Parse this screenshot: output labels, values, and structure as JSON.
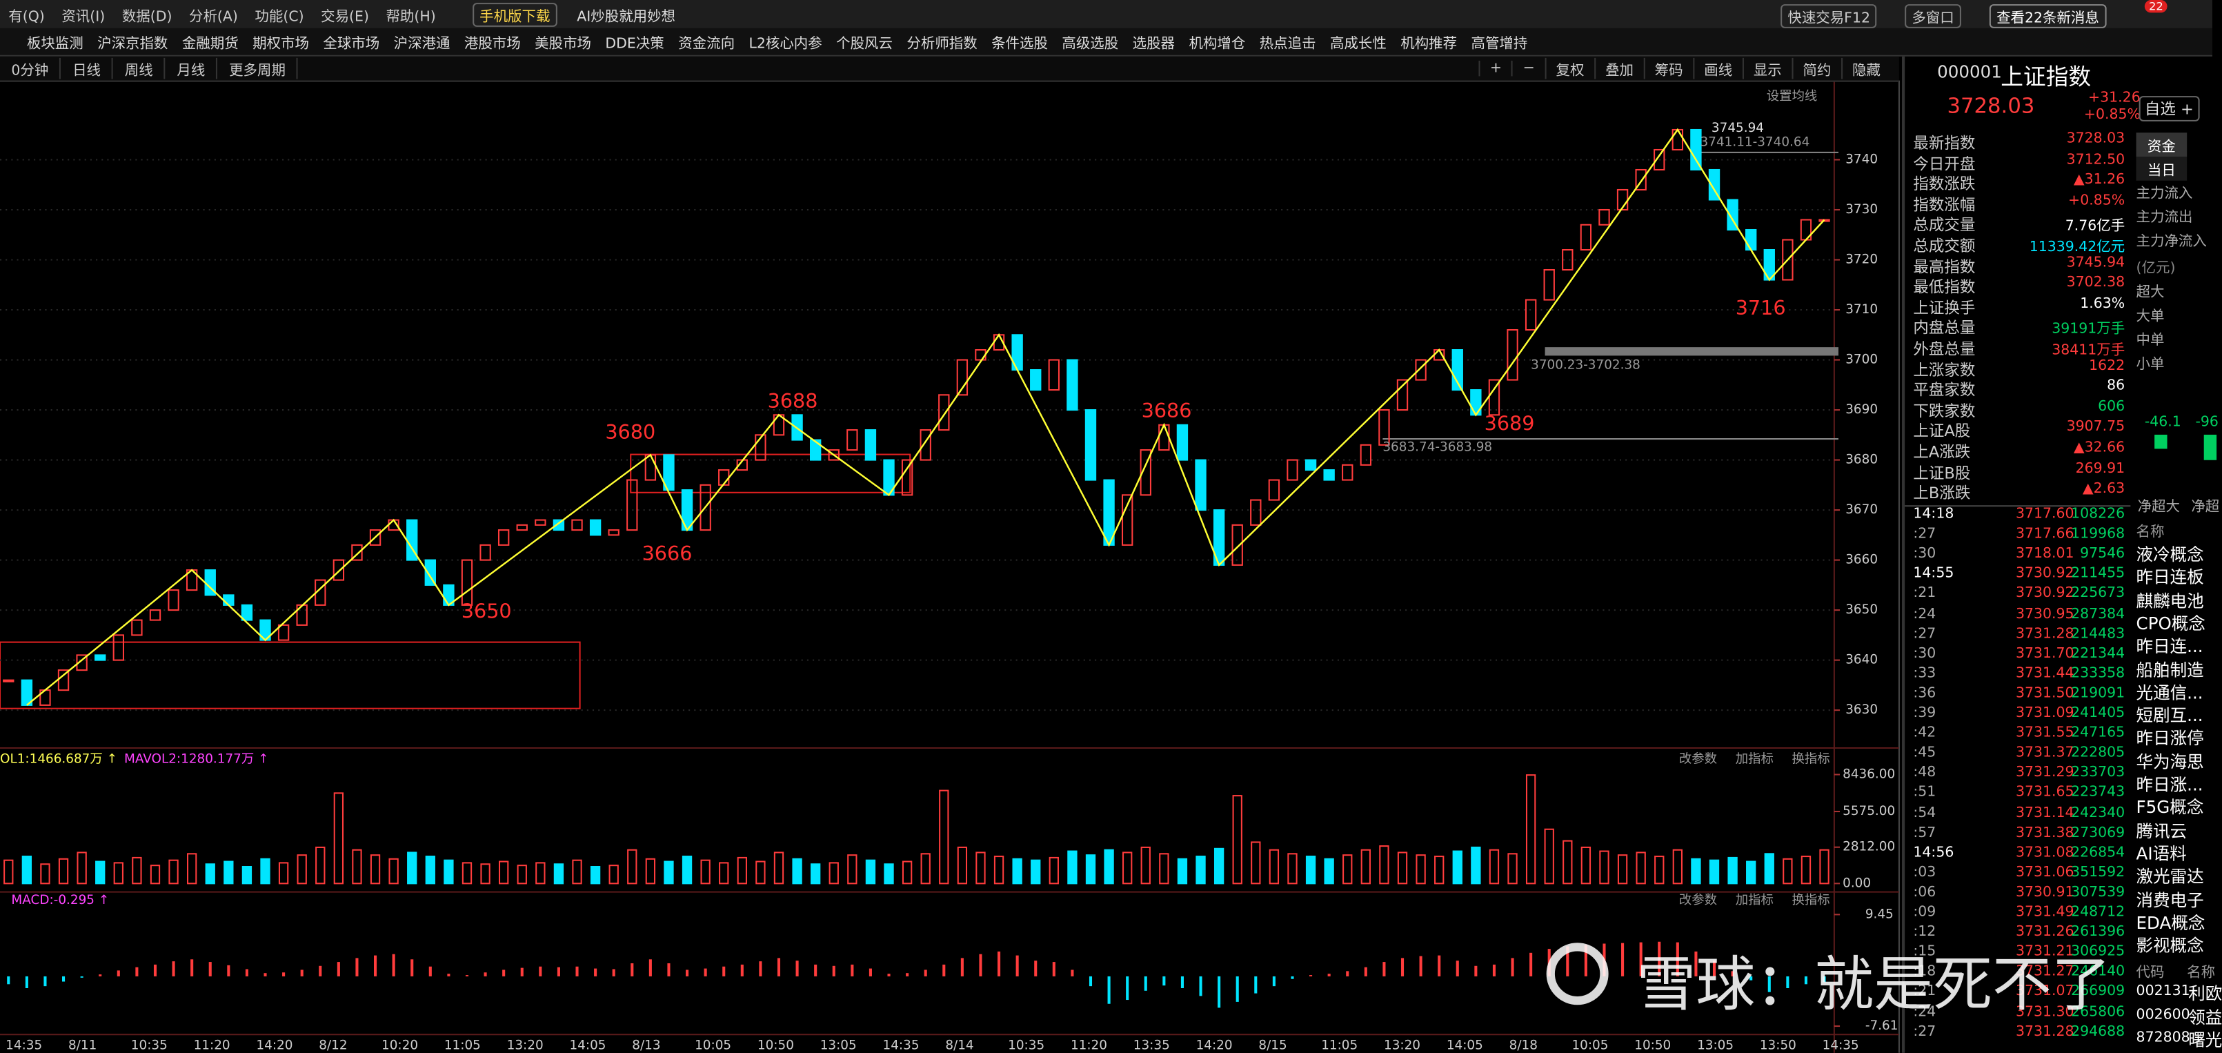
{
  "menu": {
    "items": [
      "有(Q)",
      "资讯(I)",
      "数据(D)",
      "分析(A)",
      "功能(C)",
      "交易(E)",
      "帮助(H)"
    ],
    "mobile": "手机版下载",
    "ai": "AI炒股就用妙想",
    "quick": "快速交易F12",
    "multi": "多窗口",
    "news": "查看22条新消息",
    "badge": "22"
  },
  "nav": [
    "板块监测",
    "沪深京指数",
    "金融期货",
    "期权市场",
    "全球市场",
    "沪深港通",
    "港股市场",
    "美股市场",
    "DDE决策",
    "资金流向",
    "L2核心内参",
    "个股风云",
    "分析师指数",
    "条件选股",
    "高级选股",
    "选股器",
    "机构增仓",
    "热点追击",
    "高成长性",
    "机构推荐",
    "高管增持"
  ],
  "toolbar": {
    "periods": [
      "0分钟",
      "日线",
      "周线",
      "月线",
      "更多周期"
    ],
    "tools": [
      "+",
      "−",
      "复权",
      "叠加",
      "筹码",
      "画线",
      "显示",
      "简约",
      "隐藏"
    ],
    "ma": "设置均线"
  },
  "chart_data": [
    {
      "type": "kline",
      "values": [
        3636,
        3631,
        3634,
        3638,
        3641,
        3640,
        3645,
        3648,
        3650,
        3654,
        3658,
        3653,
        3651,
        3648,
        3644,
        3647,
        3651,
        3656,
        3660,
        3663,
        3666,
        3668,
        3660,
        3655,
        3651,
        3660,
        3663,
        3666,
        3667,
        3668,
        3666,
        3668,
        3665,
        3666,
        3676,
        3681,
        3674,
        3666,
        3675,
        3678,
        3680,
        3685,
        3689,
        3684,
        3680,
        3682,
        3686,
        3680,
        3673,
        3680,
        3686,
        3693,
        3700,
        3702,
        3705,
        3698,
        3694,
        3700,
        3690,
        3676,
        3663,
        3673,
        3682,
        3687,
        3680,
        3670,
        3659,
        3667,
        3672,
        3676,
        3680,
        3678,
        3676,
        3679,
        3683,
        3690,
        3696,
        3700,
        3702,
        3694,
        3689,
        3696,
        3706,
        3712,
        3718,
        3722,
        3727,
        3730,
        3734,
        3738,
        3742,
        3746,
        3738,
        3732,
        3726,
        3722,
        3716,
        3724,
        3728,
        3728
      ],
      "ylim": [
        3623,
        3755
      ],
      "yticks": [
        3630,
        3640,
        3650,
        3660,
        3670,
        3680,
        3690,
        3700,
        3710,
        3720,
        3730,
        3740
      ],
      "grid": true,
      "colors": {
        "up": "#ff3c3c",
        "down": "#00e5ff",
        "zigzag": "#ffff33"
      },
      "time_labels": [
        "14:35",
        "8/11",
        "10:35",
        "11:20",
        "14:20",
        "8/12",
        "10:20",
        "11:05",
        "13:20",
        "14:05",
        "8/13",
        "10:05",
        "10:50",
        "13:05",
        "14:35",
        "8/14",
        "10:35",
        "11:20",
        "13:35",
        "14:20",
        "8/15",
        "11:05",
        "13:20",
        "14:05",
        "8/18",
        "10:05",
        "10:50",
        "13:05",
        "13:50",
        "14:35"
      ],
      "annotations": [
        3716,
        3689,
        3686,
        3688,
        3680,
        3666,
        3650
      ],
      "range_labels": [
        "3745.94",
        "3741.11-3740.64",
        "3700.23-3702.38",
        "3683.74-3683.98"
      ]
    },
    {
      "type": "bar",
      "legend": [
        "OL1:1466.687万 ↑",
        "MAVOL2:1280.177万 ↑"
      ],
      "tools": [
        "改参数",
        "加指标",
        "换指标"
      ],
      "values": [
        1800,
        2100,
        1500,
        1900,
        2400,
        1700,
        1600,
        2000,
        1400,
        1800,
        2300,
        1500,
        1700,
        1300,
        1900,
        1600,
        2200,
        2800,
        7000,
        2600,
        2200,
        1900,
        2400,
        2100,
        1800,
        1600,
        1500,
        1700,
        1400,
        1600,
        1500,
        1800,
        1300,
        1400,
        2600,
        1900,
        1700,
        2100,
        1800,
        1600,
        2000,
        1700,
        2400,
        1900,
        1500,
        1600,
        2200,
        1800,
        1500,
        1700,
        2300,
        7200,
        2800,
        2400,
        2100,
        1900,
        1800,
        2000,
        2500,
        2200,
        2600,
        2400,
        2800,
        2300,
        1900,
        2100,
        2700,
        6800,
        3200,
        2600,
        2300,
        2100,
        1900,
        2200,
        2600,
        2900,
        2400,
        2200,
        2100,
        2500,
        2800,
        2600,
        2300,
        8400,
        4200,
        3300,
        2800,
        2500,
        2200,
        2400,
        2100,
        2600,
        1900,
        1800,
        2000,
        1700,
        2300,
        1900,
        2100,
        2600
      ],
      "ylim": [
        0,
        9400
      ],
      "yticks": [
        {
          "value": 8436,
          "label": "8436.00"
        },
        {
          "value": 5575,
          "label": "5575.00"
        },
        {
          "value": 2812,
          "label": "2812.00"
        },
        {
          "value": 0,
          "label": "0.00"
        }
      ]
    },
    {
      "type": "macd",
      "legend": "MACD:-0.295 ↑",
      "tools": [
        "改参数",
        "加指标",
        "换指标"
      ],
      "values": [
        -1.2,
        -1.8,
        -1.5,
        -0.8,
        -0.2,
        0.3,
        0.9,
        1.4,
        1.8,
        2.3,
        2.6,
        2.2,
        1.7,
        1.1,
        0.5,
        0.6,
        1.0,
        1.6,
        2.2,
        2.8,
        3.2,
        3.4,
        2.6,
        1.5,
        0.4,
        0.2,
        0.6,
        1.0,
        1.3,
        1.5,
        1.4,
        1.5,
        1.2,
        1.1,
        2.0,
        2.6,
        2.0,
        1.0,
        1.2,
        1.5,
        1.8,
        2.3,
        2.8,
        2.4,
        1.8,
        1.6,
        1.8,
        1.2,
        0.4,
        0.5,
        1.0,
        1.8,
        2.8,
        3.4,
        3.8,
        3.2,
        2.4,
        2.2,
        1.0,
        -1.5,
        -4.2,
        -3.6,
        -2.2,
        -1.4,
        -1.8,
        -3.0,
        -4.8,
        -3.9,
        -2.6,
        -1.5,
        -0.4,
        0.2,
        0.4,
        0.8,
        1.4,
        2.2,
        2.8,
        3.1,
        3.2,
        2.4,
        1.6,
        1.8,
        2.8,
        3.6,
        4.2,
        4.6,
        4.8,
        5.0,
        5.1,
        5.2,
        5.3,
        5.2,
        3.8,
        2.4,
        0.8,
        -0.6,
        -2.4,
        -1.8,
        -1.2,
        -0.9
      ],
      "ylim": [
        -10.4,
        10.1
      ],
      "yticks": [
        9.45,
        -7.61
      ]
    }
  ],
  "quote": {
    "code": "000001",
    "name": "上证指数",
    "price": "3728.03",
    "change": "+31.26",
    "pct": "+0.85%",
    "fav": "自选 +",
    "rows": [
      [
        "最新指数",
        "3728.03"
      ],
      [
        "今日开盘",
        "3712.50"
      ],
      [
        "指数涨跌",
        "▲31.26"
      ],
      [
        "指数涨幅",
        "+0.85%"
      ],
      [
        "总成交量",
        "7.76亿手"
      ],
      [
        "总成交额",
        "11339.42亿元"
      ],
      [
        "最高指数",
        "3745.94"
      ],
      [
        "最低指数",
        "3702.38"
      ],
      [
        "上证换手",
        "1.63%"
      ],
      [
        "内盘总量",
        "39191万手"
      ],
      [
        "外盘总量",
        "38411万手"
      ],
      [
        "上涨家数",
        "1622"
      ],
      [
        "平盘家数",
        "86"
      ],
      [
        "下跌家数",
        "606"
      ],
      [
        "上证A股",
        "3907.75"
      ],
      [
        "上A涨跌",
        "▲32.66"
      ],
      [
        "上证B股",
        "269.91"
      ],
      [
        "上B涨跌",
        "▲2.63"
      ]
    ]
  },
  "ticks": [
    [
      "14:18",
      "3717.60",
      "108226"
    ],
    [
      ":27",
      "3717.66",
      "119968"
    ],
    [
      ":30",
      "3718.01",
      "97546"
    ],
    [
      "14:55",
      "3730.92",
      "211455"
    ],
    [
      ":21",
      "3730.92",
      "225673"
    ],
    [
      ":24",
      "3730.95",
      "287384"
    ],
    [
      ":27",
      "3731.28",
      "214483"
    ],
    [
      ":30",
      "3731.70",
      "221344"
    ],
    [
      ":33",
      "3731.44",
      "233358"
    ],
    [
      ":36",
      "3731.50",
      "219091"
    ],
    [
      ":39",
      "3731.09",
      "241405"
    ],
    [
      ":42",
      "3731.55",
      "247165"
    ],
    [
      ":45",
      "3731.37",
      "222805"
    ],
    [
      ":48",
      "3731.29",
      "233703"
    ],
    [
      ":51",
      "3731.65",
      "223743"
    ],
    [
      ":54",
      "3731.14",
      "242340"
    ],
    [
      ":57",
      "3731.38",
      "273069"
    ],
    [
      "14:56",
      "3731.08",
      "226854"
    ],
    [
      ":03",
      "3731.06",
      "351592"
    ],
    [
      ":06",
      "3730.91",
      "307539"
    ],
    [
      ":09",
      "3731.49",
      "248712"
    ],
    [
      ":12",
      "3731.26",
      "261396"
    ],
    [
      ":15",
      "3731.21",
      "306925"
    ],
    [
      ":18",
      "3731.27",
      "246140"
    ],
    [
      ":21",
      "3731.07",
      "266909"
    ],
    [
      ":24",
      "3731.30",
      "265806"
    ],
    [
      ":27",
      "3731.28",
      "294688"
    ]
  ],
  "sectors": {
    "header": "名称",
    "items": [
      "液冷概念",
      "昨日连板",
      "麒麟电池",
      "CPO概念",
      "昨日连...",
      "船舶制造",
      "光通信...",
      "短剧互...",
      "昨日涨停",
      "华为海思",
      "昨日涨...",
      "F5G概念",
      "腾讯云",
      "AI语料",
      "激光雷达",
      "消费电子",
      "EDA概念",
      "影视概念"
    ],
    "code_header": "代码",
    "name_header": "名称",
    "stocks": [
      [
        "002131",
        "利欧"
      ],
      [
        "002600",
        "领益"
      ],
      [
        "872808",
        "曙光"
      ]
    ]
  },
  "fund": {
    "tabs": [
      "资金",
      "当日"
    ],
    "rows": [
      "主力流入",
      "主力流出",
      "主力净流入"
    ],
    "unit": "(亿元)",
    "sizes": [
      "超大",
      "大单",
      "中单",
      "小单"
    ],
    "bars": [
      "-46.1",
      "-96"
    ],
    "net": [
      "净超大",
      "净超"
    ]
  },
  "watermark": "雪球：就是死不了"
}
